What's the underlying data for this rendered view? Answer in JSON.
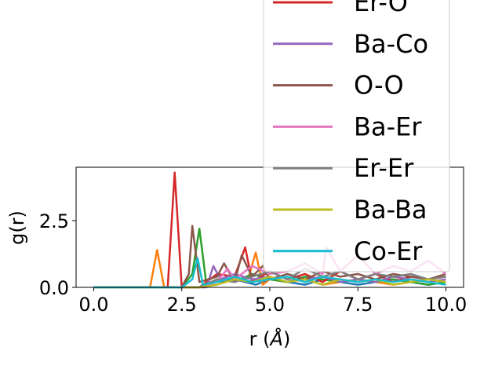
{
  "chart_data": {
    "type": "line",
    "xlabel": "r",
    "xlabel_unit": "Å",
    "ylabel": "g(r)",
    "xlim": [
      -0.5,
      10.5
    ],
    "ylim": [
      0,
      4.5
    ],
    "xticks": [
      0.0,
      2.5,
      5.0,
      7.5,
      10.0
    ],
    "xtick_labels": [
      "0.0",
      "2.5",
      "5.0",
      "7.5",
      "10.0"
    ],
    "yticks": [
      0.0,
      2.5
    ],
    "ytick_labels": [
      "0.0",
      "2.5"
    ],
    "grid": false,
    "legend_position": "top-right",
    "series": [
      {
        "name": "",
        "color": "#1f77b4",
        "x": [
          0,
          1,
          2,
          3,
          3.5,
          4,
          4.3,
          4.6,
          5,
          5.5,
          6,
          6.5,
          7,
          7.5,
          8,
          8.5,
          9,
          9.5,
          10
        ],
        "y": [
          0,
          0,
          0,
          0,
          0.2,
          0.3,
          0.2,
          0.1,
          0.3,
          0.2,
          0.1,
          0.3,
          0.2,
          0.1,
          0.2,
          0.3,
          0.2,
          0.1,
          0.2
        ]
      },
      {
        "name": "",
        "color": "#ff7f0e",
        "x": [
          0,
          1,
          1.6,
          1.8,
          2.0,
          2.2,
          2.5,
          3,
          3.5,
          4,
          4.4,
          4.6,
          4.8,
          5,
          5.5,
          6,
          6.5,
          7,
          7.5,
          8,
          8.5,
          9,
          9.5,
          10
        ],
        "y": [
          0,
          0,
          0,
          1.4,
          0,
          0,
          0,
          0,
          0.3,
          0.2,
          0.4,
          1.3,
          0.1,
          0.3,
          0.2,
          0.3,
          0.1,
          0.2,
          0.3,
          0.2,
          0.1,
          0.2,
          0.3,
          0.2
        ]
      },
      {
        "name": "",
        "color": "#2ca02c",
        "x": [
          0,
          1,
          2,
          2.5,
          2.8,
          3.0,
          3.2,
          3.5,
          4,
          4.5,
          5,
          5.5,
          6,
          6.5,
          7,
          7.5,
          8,
          8.5,
          9,
          9.5,
          10
        ],
        "y": [
          0,
          0,
          0,
          0,
          0.5,
          2.2,
          0.1,
          0.3,
          0.2,
          0.5,
          0.3,
          0.2,
          0.4,
          0.3,
          0.2,
          0.3,
          0.2,
          0.3,
          0.2,
          0.1,
          0.2
        ]
      },
      {
        "name": "Er-O",
        "color": "#d62728",
        "x": [
          0,
          1,
          2,
          2.1,
          2.3,
          2.5,
          3,
          3.5,
          4,
          4.3,
          4.5,
          5,
          5.5,
          6,
          6.5,
          7,
          7.5,
          8,
          8.5,
          9,
          9.5,
          10
        ],
        "y": [
          0,
          0,
          0,
          0,
          4.3,
          0,
          0,
          0.5,
          0.4,
          1.5,
          0.2,
          0.6,
          0.3,
          0.5,
          0.2,
          0.6,
          0.3,
          0.5,
          0.2,
          0.4,
          0.3,
          0.4
        ]
      },
      {
        "name": "Ba-Co",
        "color": "#9467bd",
        "x": [
          0,
          1,
          2,
          3,
          3.2,
          3.4,
          3.6,
          4,
          4.5,
          5,
          5.5,
          6,
          6.5,
          7,
          7.5,
          8,
          8.5,
          9,
          9.5,
          10
        ],
        "y": [
          0,
          0,
          0,
          0,
          0,
          0.8,
          0.3,
          0.5,
          0.3,
          0.4,
          0.2,
          0.3,
          0.4,
          0.2,
          0.3,
          0.2,
          0.4,
          0.3,
          0.2,
          0.3
        ]
      },
      {
        "name": "O-O",
        "color": "#8c564b",
        "x": [
          0,
          1,
          2,
          2.5,
          2.7,
          2.8,
          3.0,
          3.5,
          3.7,
          4,
          4.2,
          4.5,
          4.8,
          5,
          5.5,
          6,
          6.5,
          7,
          7.5,
          8,
          8.5,
          9,
          9.5,
          10
        ],
        "y": [
          0,
          0,
          0,
          0,
          0.5,
          2.3,
          0.2,
          0.4,
          0.9,
          0.2,
          1.2,
          0.4,
          0.8,
          0.3,
          0.5,
          0.3,
          0.6,
          0.4,
          0.5,
          0.3,
          0.5,
          0.4,
          0.3,
          0.5
        ]
      },
      {
        "name": "Ba-Er",
        "color": "#e377c2",
        "x": [
          0,
          1,
          2,
          3,
          3.5,
          3.8,
          4,
          4.5,
          5,
          5.5,
          6,
          6.5,
          6.6,
          7,
          7.5,
          8,
          8.5,
          9,
          9.5,
          10
        ],
        "y": [
          0,
          0,
          0,
          0,
          0.2,
          0.7,
          0.3,
          0.8,
          0.5,
          0.6,
          0.9,
          0.5,
          1.5,
          0.6,
          1.2,
          0.5,
          0.8,
          0.6,
          1.0,
          0.5
        ]
      },
      {
        "name": "Er-Er",
        "color": "#7f7f7f",
        "x": [
          0,
          1,
          2,
          3,
          3.5,
          4,
          4.5,
          5,
          5.5,
          6,
          6.5,
          7,
          7.5,
          8,
          8.5,
          9,
          9.5,
          10
        ],
        "y": [
          0,
          0,
          0,
          0,
          0.3,
          0.2,
          0.4,
          0.6,
          0.3,
          0.7,
          0.4,
          0.6,
          0.3,
          0.5,
          0.4,
          0.5,
          0.3,
          0.4
        ]
      },
      {
        "name": "Ba-Ba",
        "color": "#bcbd22",
        "x": [
          0,
          1,
          2,
          3,
          3.5,
          4,
          4.5,
          5,
          5.5,
          6,
          6.5,
          7,
          7.5,
          8,
          8.5,
          9,
          9.5,
          10
        ],
        "y": [
          0,
          0,
          0,
          0,
          0.1,
          0.3,
          0.2,
          0.4,
          0.2,
          0.3,
          0.1,
          0.3,
          0.2,
          0.3,
          0.1,
          0.2,
          0.3,
          0.2
        ]
      },
      {
        "name": "Co-Er",
        "color": "#17becf",
        "x": [
          0,
          1,
          2,
          2.5,
          2.8,
          2.95,
          3.1,
          3.5,
          4,
          4.5,
          5,
          5.5,
          6,
          6.5,
          7,
          7.5,
          8,
          8.5,
          9,
          9.5,
          10
        ],
        "y": [
          0,
          0,
          0,
          0,
          0.3,
          1.1,
          0.1,
          0.2,
          0.4,
          0.2,
          0.3,
          0.4,
          0.2,
          0.4,
          0.3,
          0.2,
          0.3,
          0.2,
          0.3,
          0.2,
          0.1
        ]
      }
    ]
  }
}
